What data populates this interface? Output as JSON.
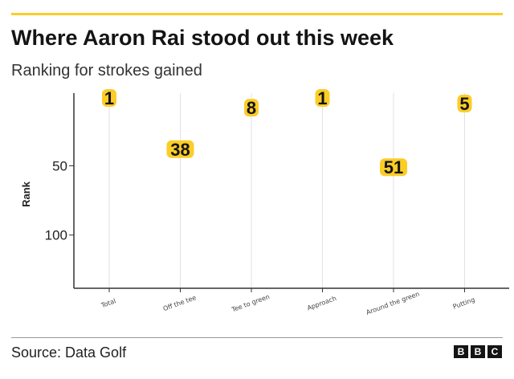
{
  "header": {
    "title": "Where Aaron Rai stood out this week",
    "subtitle": "Ranking for strokes gained",
    "accent_color": "#fbcd27"
  },
  "chart_data": {
    "type": "scatter",
    "categories": [
      "Total",
      "Off the tee",
      "Tee to green",
      "Approach",
      "Around the green",
      "Putting"
    ],
    "values": [
      1,
      38,
      8,
      1,
      51,
      5
    ],
    "ylabel": "Rank",
    "xlabel": "",
    "ylim": [
      0,
      120
    ],
    "y_inverted": true,
    "yticks": [
      50,
      100
    ],
    "grid": "vertical gridlines at each category",
    "marker_color": "#fbcd27",
    "x_tick_rotation": -20
  },
  "footer": {
    "source": "Source: Data Golf",
    "logo_letters": [
      "B",
      "B",
      "C"
    ]
  }
}
